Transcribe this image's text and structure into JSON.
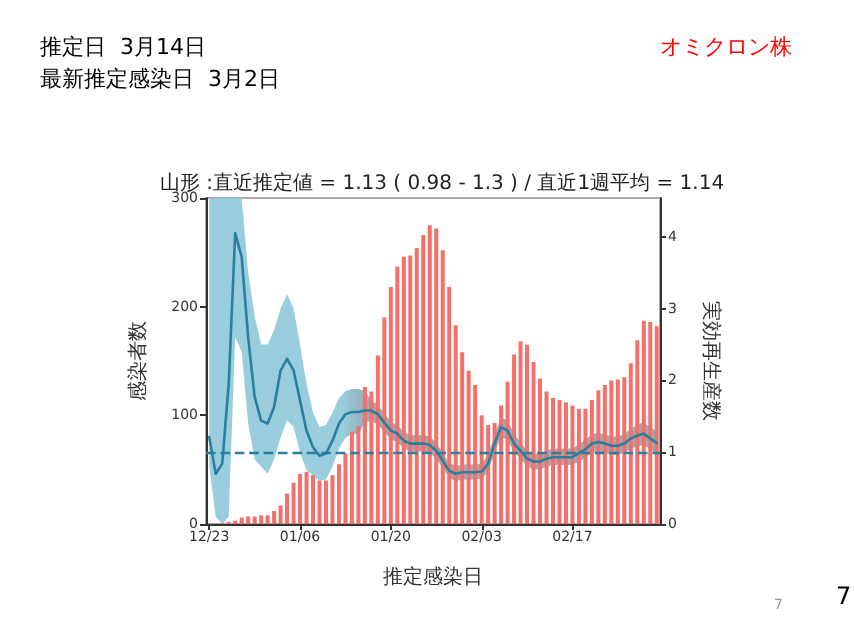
{
  "chart_data": {
    "type": "bar",
    "title": "山形 :直近推定値 = 1.13 ( 0.98 - 1.3 ) / 直近1週平均 = 1.14",
    "xlabel": "推定感染日",
    "ylabel": "感染者数",
    "y2label": "実効再生産数",
    "annotations": [
      "推定日  3月14日",
      "最新推定感染日  3月2日",
      "オミクロン株",
      "7",
      "7"
    ],
    "categories": [
      "12/23",
      null,
      null,
      null,
      null,
      null,
      null,
      null,
      null,
      null,
      null,
      null,
      null,
      null,
      "01/06",
      null,
      null,
      null,
      null,
      null,
      null,
      null,
      null,
      null,
      null,
      null,
      null,
      null,
      "01/20",
      null,
      null,
      null,
      null,
      null,
      null,
      null,
      null,
      null,
      null,
      null,
      null,
      null,
      "02/03",
      null,
      null,
      null,
      null,
      null,
      null,
      null,
      null,
      null,
      null,
      null,
      null,
      null,
      "02/17",
      null,
      null,
      null,
      null,
      null,
      null,
      null,
      null,
      null,
      null,
      null,
      null,
      null
    ],
    "series": [
      {
        "color": "#f4716b",
        "values": [
          0,
          0,
          1,
          2,
          3,
          6,
          7,
          7,
          8,
          8,
          12,
          17,
          28,
          38,
          46,
          48,
          45,
          40,
          40,
          45,
          55,
          65,
          85,
          90,
          126,
          122,
          155,
          190,
          218,
          237,
          246,
          247,
          254,
          266,
          275,
          272,
          252,
          218,
          183,
          158,
          141,
          128,
          100,
          91,
          93,
          109,
          131,
          156,
          168,
          165,
          149,
          134,
          122,
          116,
          114,
          112,
          109,
          106,
          106,
          114,
          123,
          128,
          132,
          133,
          135,
          148,
          169,
          187,
          186,
          182
        ]
      },
      {
        "type": "line",
        "axis": "y2",
        "color": "#2a7f9e",
        "values": [
          1.21,
          0.7,
          0.84,
          1.95,
          4.05,
          3.72,
          2.6,
          1.77,
          1.44,
          1.4,
          1.63,
          2.14,
          2.3,
          2.14,
          1.72,
          1.3,
          1.07,
          0.95,
          0.98,
          1.16,
          1.4,
          1.53,
          1.56,
          1.56,
          1.58,
          1.58,
          1.53,
          1.41,
          1.3,
          1.26,
          1.16,
          1.12,
          1.12,
          1.12,
          1.1,
          1.02,
          0.88,
          0.74,
          0.7,
          0.72,
          0.72,
          0.72,
          0.73,
          0.84,
          1.12,
          1.35,
          1.3,
          1.12,
          1.02,
          0.91,
          0.87,
          0.87,
          0.91,
          0.93,
          0.93,
          0.93,
          0.93,
          0.99,
          1.04,
          1.12,
          1.14,
          1.12,
          1.09,
          1.09,
          1.12,
          1.19,
          1.23,
          1.26,
          1.19,
          1.13
        ],
        "lower": [
          0.8,
          0.1,
          0,
          0.1,
          2.6,
          2.4,
          1.4,
          0.9,
          0.8,
          0.7,
          0.9,
          1.2,
          1.45,
          1.35,
          1.0,
          0.75,
          0.68,
          0.6,
          0.62,
          0.8,
          1.05,
          1.2,
          1.25,
          1.25,
          1.42,
          1.43,
          1.39,
          1.28,
          1.18,
          1.14,
          1.05,
          1.01,
          1.01,
          1.01,
          0.99,
          0.91,
          0.78,
          0.64,
          0.6,
          0.62,
          0.62,
          0.62,
          0.63,
          0.73,
          1.0,
          1.21,
          1.17,
          1.0,
          0.91,
          0.8,
          0.76,
          0.76,
          0.8,
          0.82,
          0.82,
          0.82,
          0.82,
          0.87,
          0.92,
          1.0,
          1.01,
          0.99,
          0.96,
          0.96,
          0.99,
          1.05,
          1.08,
          1.1,
          1.04,
          0.98
        ],
        "upper": [
          4.54,
          4.54,
          4.54,
          4.54,
          4.54,
          4.54,
          3.5,
          2.9,
          2.5,
          2.5,
          2.7,
          3.0,
          3.2,
          3.0,
          2.5,
          1.95,
          1.55,
          1.35,
          1.38,
          1.55,
          1.75,
          1.85,
          1.88,
          1.88,
          1.85,
          1.72,
          1.66,
          1.54,
          1.42,
          1.38,
          1.28,
          1.24,
          1.24,
          1.24,
          1.22,
          1.13,
          0.99,
          0.85,
          0.81,
          0.83,
          0.83,
          0.83,
          0.84,
          0.96,
          1.25,
          1.49,
          1.44,
          1.25,
          1.14,
          1.02,
          0.98,
          0.98,
          1.02,
          1.05,
          1.05,
          1.05,
          1.05,
          1.11,
          1.17,
          1.25,
          1.27,
          1.25,
          1.22,
          1.22,
          1.25,
          1.33,
          1.38,
          1.42,
          1.34,
          1.3
        ]
      }
    ],
    "ylim": [
      0,
      300
    ],
    "yticks": [
      0,
      100,
      200,
      300
    ],
    "y2lim": [
      0,
      4.54
    ],
    "y2ticks": [
      0,
      1,
      2,
      3,
      4
    ],
    "ref_lines": [
      {
        "axis": "y2",
        "value": 1,
        "color": "#2a7f9e",
        "line_style": "dashed"
      }
    ],
    "grid": false
  }
}
